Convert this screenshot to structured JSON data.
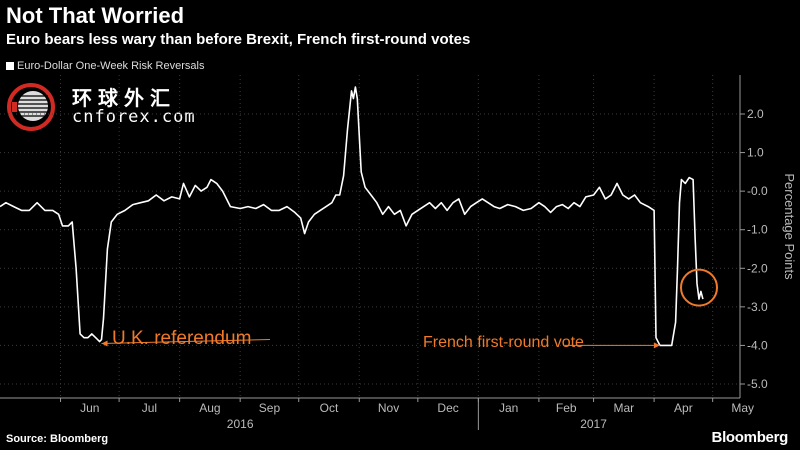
{
  "header": {
    "title": "Not That Worried",
    "subtitle": "Euro bears less wary than before Brexit, French first-round votes"
  },
  "footer": {
    "source": "Source: Bloomberg",
    "brand": "Bloomberg"
  },
  "watermark": {
    "cn": "环球外汇",
    "en": "cnforex.com"
  },
  "colors": {
    "background": "#000000",
    "line": "#ffffff",
    "annotation": "#f07a2a",
    "axis": "#bbbbbb"
  },
  "chart_data": {
    "type": "line",
    "title": "Not That Worried",
    "subtitle": "Euro bears less wary than before Brexit, French first-round votes",
    "ylabel": "Percentage Points",
    "ylim": [
      -5.0,
      2.5
    ],
    "yticks": [
      2.0,
      1.0,
      -0.0,
      -1.0,
      -2.0,
      -3.0,
      -4.0,
      -5.0
    ],
    "ytick_labels": [
      "2.0",
      "1.0",
      "-0.0",
      "-1.0",
      "-2.0",
      "-3.0",
      "-4.0",
      "-5.0"
    ],
    "xlim": [
      "2016-05-01",
      "2017-05-15"
    ],
    "xticks": [
      {
        "date": "2016-06-01",
        "label": "Jun"
      },
      {
        "date": "2016-07-01",
        "label": "Jul"
      },
      {
        "date": "2016-08-01",
        "label": "Aug"
      },
      {
        "date": "2016-09-01",
        "label": "Sep"
      },
      {
        "date": "2016-10-01",
        "label": "Oct"
      },
      {
        "date": "2016-11-01",
        "label": "Nov"
      },
      {
        "date": "2016-12-01",
        "label": "Dec"
      },
      {
        "date": "2017-01-01",
        "label": "Jan"
      },
      {
        "date": "2017-02-01",
        "label": "Feb"
      },
      {
        "date": "2017-03-01",
        "label": "Mar"
      },
      {
        "date": "2017-04-01",
        "label": "Apr"
      },
      {
        "date": "2017-05-01",
        "label": "May"
      }
    ],
    "year_labels": [
      {
        "date": "2016-09-01",
        "label": "2016"
      },
      {
        "date": "2017-03-01",
        "label": "2017"
      }
    ],
    "grid": true,
    "legend_position": "top-left",
    "series": [
      {
        "name": "Euro-Dollar One-Week Risk Reversals",
        "color": "#ffffff",
        "points": [
          [
            "2016-05-01",
            -0.4
          ],
          [
            "2016-05-04",
            -0.3
          ],
          [
            "2016-05-08",
            -0.4
          ],
          [
            "2016-05-12",
            -0.5
          ],
          [
            "2016-05-16",
            -0.5
          ],
          [
            "2016-05-20",
            -0.3
          ],
          [
            "2016-05-24",
            -0.5
          ],
          [
            "2016-05-28",
            -0.5
          ],
          [
            "2016-05-31",
            -0.6
          ],
          [
            "2016-06-02",
            -0.9
          ],
          [
            "2016-06-05",
            -0.9
          ],
          [
            "2016-06-07",
            -0.8
          ],
          [
            "2016-06-09",
            -2.0
          ],
          [
            "2016-06-11",
            -3.7
          ],
          [
            "2016-06-13",
            -3.8
          ],
          [
            "2016-06-15",
            -3.8
          ],
          [
            "2016-06-17",
            -3.7
          ],
          [
            "2016-06-19",
            -3.8
          ],
          [
            "2016-06-21",
            -3.9
          ],
          [
            "2016-06-22",
            -3.85
          ],
          [
            "2016-06-23",
            -3.3
          ],
          [
            "2016-06-25",
            -1.5
          ],
          [
            "2016-06-27",
            -0.8
          ],
          [
            "2016-06-30",
            -0.6
          ],
          [
            "2016-07-04",
            -0.5
          ],
          [
            "2016-07-08",
            -0.35
          ],
          [
            "2016-07-12",
            -0.3
          ],
          [
            "2016-07-16",
            -0.25
          ],
          [
            "2016-07-20",
            -0.1
          ],
          [
            "2016-07-24",
            -0.25
          ],
          [
            "2016-07-28",
            -0.15
          ],
          [
            "2016-08-01",
            -0.2
          ],
          [
            "2016-08-03",
            0.2
          ],
          [
            "2016-08-06",
            -0.15
          ],
          [
            "2016-08-09",
            0.15
          ],
          [
            "2016-08-12",
            0.0
          ],
          [
            "2016-08-15",
            0.1
          ],
          [
            "2016-08-17",
            0.3
          ],
          [
            "2016-08-20",
            0.2
          ],
          [
            "2016-08-23",
            0.0
          ],
          [
            "2016-08-27",
            -0.4
          ],
          [
            "2016-09-01",
            -0.45
          ],
          [
            "2016-09-05",
            -0.4
          ],
          [
            "2016-09-09",
            -0.45
          ],
          [
            "2016-09-13",
            -0.35
          ],
          [
            "2016-09-17",
            -0.5
          ],
          [
            "2016-09-21",
            -0.5
          ],
          [
            "2016-09-25",
            -0.4
          ],
          [
            "2016-09-29",
            -0.55
          ],
          [
            "2016-10-02",
            -0.7
          ],
          [
            "2016-10-04",
            -1.1
          ],
          [
            "2016-10-06",
            -0.8
          ],
          [
            "2016-10-09",
            -0.6
          ],
          [
            "2016-10-12",
            -0.5
          ],
          [
            "2016-10-15",
            -0.4
          ],
          [
            "2016-10-18",
            -0.3
          ],
          [
            "2016-10-20",
            -0.1
          ],
          [
            "2016-10-22",
            -0.1
          ],
          [
            "2016-10-24",
            0.4
          ],
          [
            "2016-10-26",
            1.6
          ],
          [
            "2016-10-28",
            2.6
          ],
          [
            "2016-10-29",
            2.4
          ],
          [
            "2016-10-30",
            2.7
          ],
          [
            "2016-10-31",
            2.4
          ],
          [
            "2016-11-02",
            0.5
          ],
          [
            "2016-11-04",
            0.1
          ],
          [
            "2016-11-07",
            -0.1
          ],
          [
            "2016-11-10",
            -0.3
          ],
          [
            "2016-11-13",
            -0.6
          ],
          [
            "2016-11-16",
            -0.4
          ],
          [
            "2016-11-19",
            -0.6
          ],
          [
            "2016-11-22",
            -0.5
          ],
          [
            "2016-11-25",
            -0.9
          ],
          [
            "2016-11-28",
            -0.6
          ],
          [
            "2016-12-01",
            -0.5
          ],
          [
            "2016-12-04",
            -0.4
          ],
          [
            "2016-12-07",
            -0.3
          ],
          [
            "2016-12-10",
            -0.45
          ],
          [
            "2016-12-13",
            -0.3
          ],
          [
            "2016-12-16",
            -0.5
          ],
          [
            "2016-12-19",
            -0.3
          ],
          [
            "2016-12-22",
            -0.2
          ],
          [
            "2016-12-25",
            -0.6
          ],
          [
            "2016-12-28",
            -0.4
          ],
          [
            "2016-12-31",
            -0.3
          ],
          [
            "2017-01-03",
            -0.2
          ],
          [
            "2017-01-06",
            -0.3
          ],
          [
            "2017-01-09",
            -0.4
          ],
          [
            "2017-01-12",
            -0.45
          ],
          [
            "2017-01-16",
            -0.35
          ],
          [
            "2017-01-20",
            -0.4
          ],
          [
            "2017-01-24",
            -0.5
          ],
          [
            "2017-01-28",
            -0.45
          ],
          [
            "2017-02-01",
            -0.3
          ],
          [
            "2017-02-04",
            -0.4
          ],
          [
            "2017-02-07",
            -0.55
          ],
          [
            "2017-02-10",
            -0.4
          ],
          [
            "2017-02-13",
            -0.35
          ],
          [
            "2017-02-16",
            -0.45
          ],
          [
            "2017-02-19",
            -0.3
          ],
          [
            "2017-02-22",
            -0.4
          ],
          [
            "2017-02-25",
            -0.15
          ],
          [
            "2017-03-01",
            -0.1
          ],
          [
            "2017-03-04",
            0.1
          ],
          [
            "2017-03-07",
            -0.2
          ],
          [
            "2017-03-10",
            -0.1
          ],
          [
            "2017-03-13",
            0.2
          ],
          [
            "2017-03-16",
            -0.1
          ],
          [
            "2017-03-19",
            -0.2
          ],
          [
            "2017-03-22",
            -0.1
          ],
          [
            "2017-03-25",
            -0.3
          ],
          [
            "2017-03-29",
            -0.4
          ],
          [
            "2017-04-01",
            -0.5
          ],
          [
            "2017-04-02",
            -3.8
          ],
          [
            "2017-04-04",
            -4.0
          ],
          [
            "2017-04-07",
            -4.0
          ],
          [
            "2017-04-10",
            -4.0
          ],
          [
            "2017-04-12",
            -3.4
          ],
          [
            "2017-04-13",
            -2.0
          ],
          [
            "2017-04-14",
            -0.3
          ],
          [
            "2017-04-15",
            0.3
          ],
          [
            "2017-04-17",
            0.2
          ],
          [
            "2017-04-19",
            0.35
          ],
          [
            "2017-04-21",
            0.3
          ],
          [
            "2017-04-22",
            -1.2
          ],
          [
            "2017-04-23",
            -2.4
          ],
          [
            "2017-04-24",
            -2.8
          ],
          [
            "2017-04-25",
            -2.6
          ],
          [
            "2017-04-26",
            -2.8
          ]
        ]
      }
    ],
    "annotations": [
      {
        "text": "U.K. referendum",
        "date": "2016-06-22",
        "value": -3.95
      },
      {
        "text": "French first-round vote",
        "date": "2017-04-04",
        "value": -4.0
      }
    ],
    "highlight_circle": {
      "date": "2017-04-24",
      "value": -2.5
    }
  }
}
